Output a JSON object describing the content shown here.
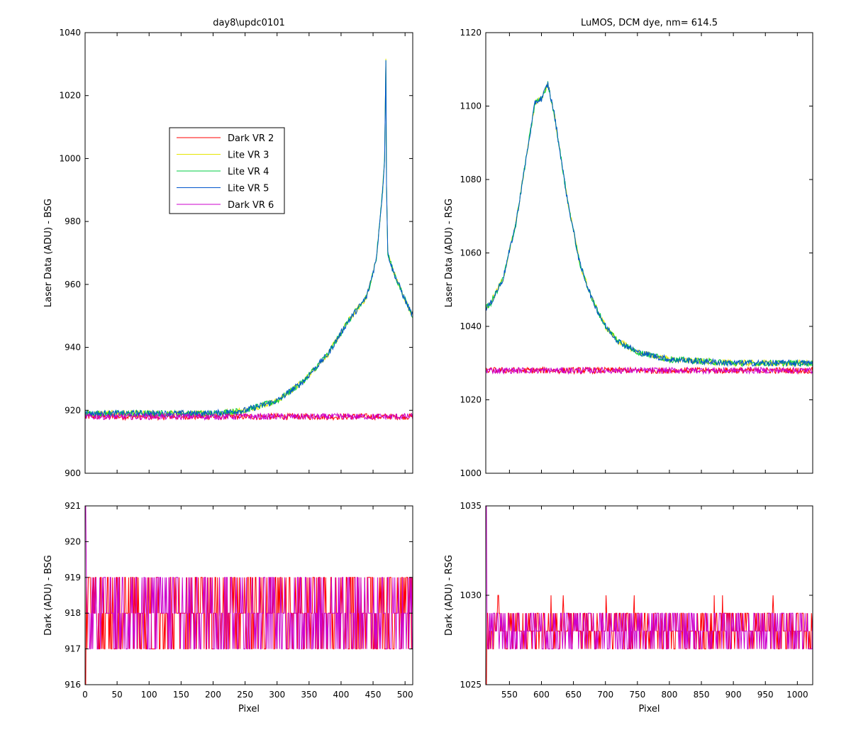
{
  "chart_data": [
    {
      "id": "tl",
      "type": "line",
      "title": "day8\\updc0101",
      "xlabel": "",
      "ylabel": "Laser Data (ADU) - BSG",
      "xlim": [
        0,
        512
      ],
      "ylim": [
        900,
        1040
      ],
      "xticks": [
        0,
        50,
        100,
        150,
        200,
        250,
        300,
        350,
        400,
        450,
        500
      ],
      "yticks": [
        900,
        920,
        940,
        960,
        980,
        1000,
        1020,
        1040
      ],
      "show_xtick_labels": false,
      "legend": {
        "placement": "upper-left-inside",
        "entries": [
          "Dark VR 2",
          "Lite VR 3",
          "Lite VR 4",
          "Lite VR 5",
          "Dark VR 6"
        ]
      },
      "series": [
        {
          "name": "Dark VR 2",
          "color": "#ff0000",
          "x": [
            0,
            512
          ],
          "y": [
            918,
            918
          ]
        },
        {
          "name": "Lite VR 3",
          "color": "#e6e600",
          "x": [
            0,
            100,
            200,
            250,
            300,
            340,
            380,
            410,
            440,
            455,
            465,
            468,
            470,
            471,
            473,
            480,
            500,
            512
          ],
          "y": [
            919,
            919,
            919,
            920,
            923,
            929,
            938,
            948,
            956,
            968,
            990,
            1000,
            1031,
            992,
            970,
            965,
            955,
            950
          ]
        },
        {
          "name": "Lite VR 4",
          "color": "#00cc44",
          "x": [
            0,
            100,
            200,
            250,
            300,
            340,
            380,
            410,
            440,
            455,
            465,
            468,
            470,
            471,
            473,
            480,
            500,
            512
          ],
          "y": [
            919,
            919,
            919,
            920,
            923,
            929,
            938,
            948,
            956,
            968,
            990,
            1000,
            1031,
            992,
            970,
            965,
            955,
            950
          ]
        },
        {
          "name": "Lite VR 5",
          "color": "#0055cc",
          "x": [
            0,
            100,
            200,
            250,
            300,
            340,
            380,
            410,
            440,
            455,
            465,
            468,
            470,
            471,
            473,
            480,
            500,
            512
          ],
          "y": [
            919,
            919,
            919,
            920,
            923,
            929,
            938,
            948,
            956,
            968,
            990,
            1000,
            1031,
            992,
            970,
            965,
            955,
            950
          ]
        },
        {
          "name": "Dark VR 6",
          "color": "#cc00cc",
          "x": [
            0,
            512
          ],
          "y": [
            918,
            918
          ]
        }
      ]
    },
    {
      "id": "tr",
      "type": "line",
      "title": "LuMOS, DCM dye, nm= 614.5",
      "xlabel": "",
      "ylabel": "Laser Data (ADU) - RSG",
      "xlim": [
        513,
        1024
      ],
      "ylim": [
        1000,
        1120
      ],
      "xticks": [
        550,
        600,
        650,
        700,
        750,
        800,
        850,
        900,
        950,
        1000
      ],
      "yticks": [
        1000,
        1020,
        1040,
        1060,
        1080,
        1100,
        1120
      ],
      "show_xtick_labels": false,
      "series": [
        {
          "name": "Dark VR 2",
          "color": "#ff0000",
          "x": [
            513,
            1024
          ],
          "y": [
            1028,
            1028
          ]
        },
        {
          "name": "Lite VR 3",
          "color": "#e6e600",
          "x": [
            513,
            520,
            540,
            560,
            580,
            590,
            600,
            610,
            620,
            640,
            660,
            680,
            700,
            720,
            750,
            800,
            900,
            1024
          ],
          "y": [
            1045,
            1046,
            1053,
            1068,
            1090,
            1101,
            1102,
            1106,
            1098,
            1075,
            1057,
            1047,
            1040,
            1036,
            1033,
            1031,
            1030,
            1030
          ]
        },
        {
          "name": "Lite VR 4",
          "color": "#00cc44",
          "x": [
            513,
            520,
            540,
            560,
            580,
            590,
            600,
            610,
            620,
            640,
            660,
            680,
            700,
            720,
            750,
            800,
            900,
            1024
          ],
          "y": [
            1045,
            1046,
            1053,
            1068,
            1090,
            1101,
            1102,
            1106,
            1098,
            1075,
            1057,
            1047,
            1040,
            1036,
            1033,
            1031,
            1030,
            1030
          ]
        },
        {
          "name": "Lite VR 5",
          "color": "#0055cc",
          "x": [
            513,
            520,
            540,
            560,
            580,
            590,
            600,
            610,
            620,
            640,
            660,
            680,
            700,
            720,
            750,
            800,
            900,
            1024
          ],
          "y": [
            1045,
            1046,
            1053,
            1068,
            1090,
            1101,
            1102,
            1106,
            1098,
            1075,
            1057,
            1047,
            1040,
            1036,
            1033,
            1031,
            1030,
            1030
          ]
        },
        {
          "name": "Dark VR 6",
          "color": "#cc00cc",
          "x": [
            513,
            1024
          ],
          "y": [
            1028,
            1028
          ]
        }
      ]
    },
    {
      "id": "bl",
      "type": "line",
      "title": "",
      "xlabel": "Pixel",
      "ylabel": "Dark (ADU) - BSG",
      "xlim": [
        0,
        512
      ],
      "ylim": [
        916,
        921
      ],
      "xticks": [
        0,
        50,
        100,
        150,
        200,
        250,
        300,
        350,
        400,
        450,
        500
      ],
      "yticks": [
        916,
        917,
        918,
        919,
        920,
        921
      ],
      "show_xtick_labels": true,
      "series": [
        {
          "name": "Dark VR 2",
          "color": "#ff0000",
          "x": [
            0,
            512
          ],
          "y": [
            918,
            918
          ],
          "range": [
            917,
            919
          ]
        },
        {
          "name": "Dark VR 6",
          "color": "#cc00cc",
          "x": [
            0,
            512
          ],
          "y": [
            918,
            918
          ],
          "range": [
            917,
            919
          ]
        }
      ]
    },
    {
      "id": "br",
      "type": "line",
      "title": "",
      "xlabel": "Pixel",
      "ylabel": "Dark (ADU) - RSG",
      "xlim": [
        513,
        1024
      ],
      "ylim": [
        1025,
        1035
      ],
      "xticks": [
        550,
        600,
        650,
        700,
        750,
        800,
        850,
        900,
        950,
        1000
      ],
      "yticks": [
        1025,
        1030,
        1035
      ],
      "show_xtick_labels": true,
      "series": [
        {
          "name": "Dark VR 2",
          "color": "#ff0000",
          "x": [
            513,
            1024
          ],
          "y": [
            1028,
            1028
          ],
          "range": [
            1027,
            1030
          ]
        },
        {
          "name": "Dark VR 6",
          "color": "#cc00cc",
          "x": [
            513,
            1024
          ],
          "y": [
            1028,
            1028
          ],
          "range": [
            1027,
            1029
          ]
        }
      ]
    }
  ]
}
